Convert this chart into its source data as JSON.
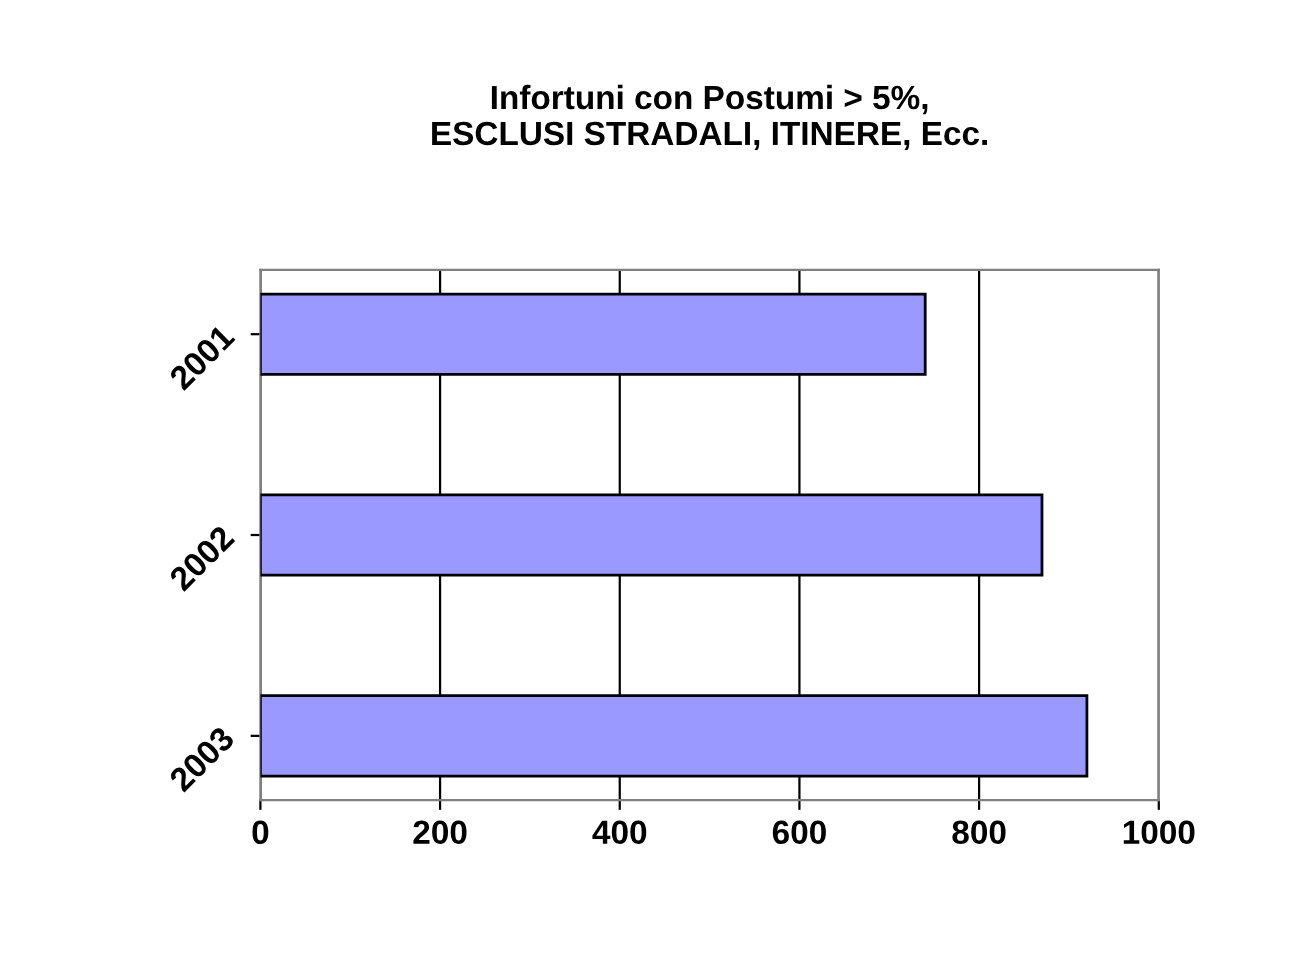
{
  "chart_data": {
    "type": "bar",
    "orientation": "horizontal",
    "title": "Infortuni con Postumi > 5%,\nESCLUSI STRADALI, ITINERE, Ecc.",
    "categories": [
      "2001",
      "2002",
      "2003"
    ],
    "values": [
      740,
      870,
      920
    ],
    "color": "#9999ff",
    "xlim": [
      0,
      1000
    ],
    "xticks": [
      0,
      200,
      400,
      600,
      800,
      1000
    ],
    "grid": "x"
  }
}
